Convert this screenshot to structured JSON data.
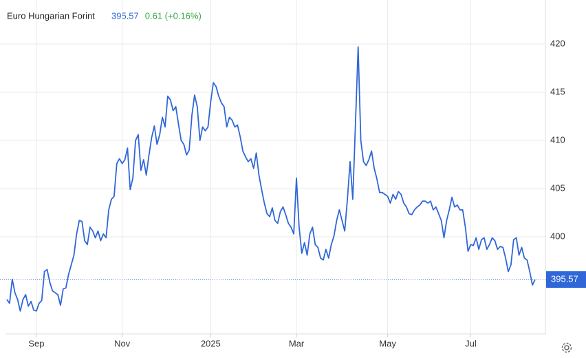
{
  "chart_data": {
    "type": "line",
    "title": "Euro Hungarian Forint",
    "change": "0.61 (+0.16%)",
    "color": "#2f67d8",
    "grid": true,
    "ylim": [
      390,
      424
    ],
    "yticks": [
      400,
      405,
      410,
      415,
      420
    ],
    "categories": [
      null,
      null,
      null,
      null,
      null,
      null,
      null,
      null,
      null,
      null,
      null,
      "Sep",
      null,
      null,
      null,
      null,
      null,
      null,
      null,
      null,
      null,
      null,
      null,
      null,
      null,
      null,
      null,
      null,
      null,
      null,
      null,
      null,
      null,
      null,
      null,
      null,
      null,
      null,
      null,
      null,
      null,
      null,
      null,
      "Nov",
      null,
      null,
      null,
      null,
      null,
      null,
      null,
      null,
      null,
      null,
      null,
      null,
      null,
      null,
      null,
      null,
      null,
      null,
      null,
      null,
      null,
      null,
      null,
      null,
      null,
      null,
      null,
      null,
      null,
      null,
      null,
      null,
      "2025",
      null,
      null,
      null,
      null,
      null,
      null,
      null,
      null,
      null,
      null,
      null,
      null,
      null,
      null,
      null,
      null,
      null,
      null,
      null,
      null,
      null,
      null,
      null,
      null,
      null,
      null,
      null,
      null,
      null,
      null,
      null,
      "Mar",
      null,
      null,
      null,
      null,
      null,
      null,
      null,
      null,
      null,
      null,
      null,
      null,
      null,
      null,
      null,
      null,
      null,
      null,
      null,
      null,
      null,
      null,
      null,
      null,
      null,
      null,
      null,
      null,
      null,
      null,
      null,
      null,
      null,
      "May",
      null,
      null,
      null,
      null,
      null,
      null,
      null,
      null,
      null,
      null,
      null,
      null,
      null,
      null,
      null,
      null,
      null,
      null,
      null,
      null,
      null,
      null,
      null,
      null,
      null,
      null,
      null,
      null,
      null,
      null,
      "Jul",
      null,
      null,
      null,
      null,
      null,
      null,
      null,
      null,
      null,
      null,
      null,
      null,
      null,
      null,
      null,
      null,
      null,
      null,
      null,
      null,
      null,
      null,
      null,
      null
    ],
    "values": [
      393.5,
      393.1,
      395.6,
      394.2,
      393.5,
      392.3,
      393.5,
      394.0,
      392.8,
      393.3,
      392.4,
      392.3,
      393.1,
      393.4,
      396.4,
      396.6,
      395.3,
      394.4,
      394.2,
      394.0,
      392.9,
      394.6,
      394.7,
      396.1,
      397.1,
      398.1,
      400.3,
      401.7,
      401.6,
      399.6,
      399.2,
      401.0,
      400.6,
      399.9,
      400.6,
      399.6,
      400.3,
      399.9,
      402.8,
      403.9,
      404.2,
      407.6,
      408.1,
      407.6,
      408.0,
      409.2,
      404.9,
      406.1,
      410.0,
      410.6,
      406.9,
      408.0,
      406.4,
      408.5,
      410.3,
      411.5,
      409.6,
      410.6,
      412.4,
      411.4,
      414.6,
      414.2,
      413.1,
      413.5,
      411.7,
      410.0,
      409.6,
      408.5,
      409.0,
      412.6,
      414.7,
      413.5,
      410.0,
      411.4,
      411.0,
      411.4,
      414.0,
      416.0,
      415.6,
      414.6,
      413.9,
      413.5,
      411.4,
      412.4,
      412.1,
      411.4,
      411.6,
      410.4,
      408.9,
      408.3,
      407.8,
      408.1,
      407.1,
      408.7,
      406.4,
      404.9,
      403.5,
      402.4,
      402.1,
      403.0,
      401.7,
      401.4,
      402.6,
      403.1,
      402.3,
      401.4,
      401.0,
      400.3,
      406.1,
      401.0,
      398.3,
      399.4,
      398.1,
      400.3,
      401.0,
      399.2,
      398.9,
      397.8,
      397.6,
      398.7,
      397.8,
      399.2,
      400.1,
      401.7,
      402.8,
      401.7,
      400.6,
      403.9,
      407.8,
      403.9,
      411.7,
      419.7,
      410.0,
      407.8,
      407.4,
      408.0,
      408.9,
      407.1,
      406.0,
      404.6,
      404.6,
      404.4,
      404.2,
      403.5,
      404.4,
      403.9,
      404.7,
      404.4,
      403.5,
      403.1,
      402.4,
      402.3,
      402.8,
      403.1,
      403.3,
      403.7,
      403.7,
      403.5,
      403.7,
      402.8,
      403.1,
      402.4,
      401.7,
      399.9,
      401.7,
      402.8,
      404.1,
      403.1,
      403.3,
      402.8,
      402.8,
      401.0,
      398.5,
      399.2,
      399.1,
      399.9,
      398.7,
      399.7,
      399.9,
      398.7,
      399.2,
      399.9,
      399.6,
      398.7,
      399.0,
      398.9,
      397.8,
      396.4,
      397.1,
      399.7,
      399.9,
      398.1,
      398.9,
      397.8,
      397.6,
      396.4,
      395.0,
      395.57
    ]
  }
}
